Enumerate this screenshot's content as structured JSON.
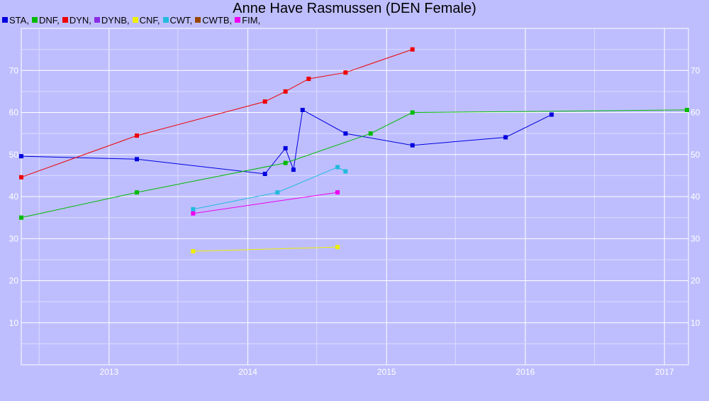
{
  "chart_data": {
    "type": "line",
    "title": "Anne Have Rasmussen (DEN Female)",
    "xlim": [
      "2012-05-15",
      "2017-03-05"
    ],
    "ylim": [
      0,
      80
    ],
    "x_ticks": [
      "2013",
      "2014",
      "2015",
      "2016",
      "2017"
    ],
    "y_ticks": [
      10,
      20,
      30,
      40,
      50,
      60,
      70
    ],
    "grid": true,
    "legend_position": "top-left",
    "legend": [
      {
        "label": "STA,",
        "color": "#0000dd"
      },
      {
        "label": "DNF,",
        "color": "#00bb00"
      },
      {
        "label": "DYN,",
        "color": "#ee0000"
      },
      {
        "label": "DYNB,",
        "color": "#8a2be2"
      },
      {
        "label": "CNF,",
        "color": "#eeee00"
      },
      {
        "label": "CWT,",
        "color": "#22bbdd"
      },
      {
        "label": "CWTB,",
        "color": "#994400"
      },
      {
        "label": "FIM,",
        "color": "#ee00ee"
      }
    ],
    "series": [
      {
        "name": "STA",
        "color": "#0000dd",
        "points": [
          {
            "x": "2012-05-15",
            "y": 49.6
          },
          {
            "x": "2013-03-15",
            "y": 48.9
          },
          {
            "x": "2014-02-15",
            "y": 45.4
          },
          {
            "x": "2014-04-10",
            "y": 51.5
          },
          {
            "x": "2014-05-01",
            "y": 46.4
          },
          {
            "x": "2014-05-25",
            "y": 60.6
          },
          {
            "x": "2014-09-15",
            "y": 55.0
          },
          {
            "x": "2015-03-10",
            "y": 52.2
          },
          {
            "x": "2015-11-10",
            "y": 54.1
          },
          {
            "x": "2016-03-10",
            "y": 59.5
          }
        ]
      },
      {
        "name": "DNF",
        "color": "#00bb00",
        "points": [
          {
            "x": "2012-05-15",
            "y": 35.0
          },
          {
            "x": "2013-03-15",
            "y": 41.0
          },
          {
            "x": "2014-04-10",
            "y": 48.0
          },
          {
            "x": "2014-11-20",
            "y": 55.0
          },
          {
            "x": "2015-03-10",
            "y": 60.0
          },
          {
            "x": "2017-03-01",
            "y": 60.6
          }
        ]
      },
      {
        "name": "DYN",
        "color": "#ee0000",
        "points": [
          {
            "x": "2012-05-15",
            "y": 44.6
          },
          {
            "x": "2013-03-15",
            "y": 54.5
          },
          {
            "x": "2014-02-15",
            "y": 62.6
          },
          {
            "x": "2014-04-10",
            "y": 65.0
          },
          {
            "x": "2014-06-10",
            "y": 68.0
          },
          {
            "x": "2014-09-15",
            "y": 69.5
          },
          {
            "x": "2015-03-10",
            "y": 75.0
          }
        ]
      },
      {
        "name": "CNF",
        "color": "#eeee00",
        "points": [
          {
            "x": "2013-08-10",
            "y": 27.0
          },
          {
            "x": "2014-08-25",
            "y": 28.0
          }
        ]
      },
      {
        "name": "CWT",
        "color": "#22bbdd",
        "points": [
          {
            "x": "2013-08-10",
            "y": 37.0
          },
          {
            "x": "2014-03-20",
            "y": 41.0
          },
          {
            "x": "2014-08-25",
            "y": 47.0
          },
          {
            "x": "2014-09-15",
            "y": 46.0
          }
        ]
      },
      {
        "name": "FIM",
        "color": "#ee00ee",
        "points": [
          {
            "x": "2013-08-10",
            "y": 36.0
          },
          {
            "x": "2014-08-25",
            "y": 41.0
          }
        ]
      }
    ]
  }
}
